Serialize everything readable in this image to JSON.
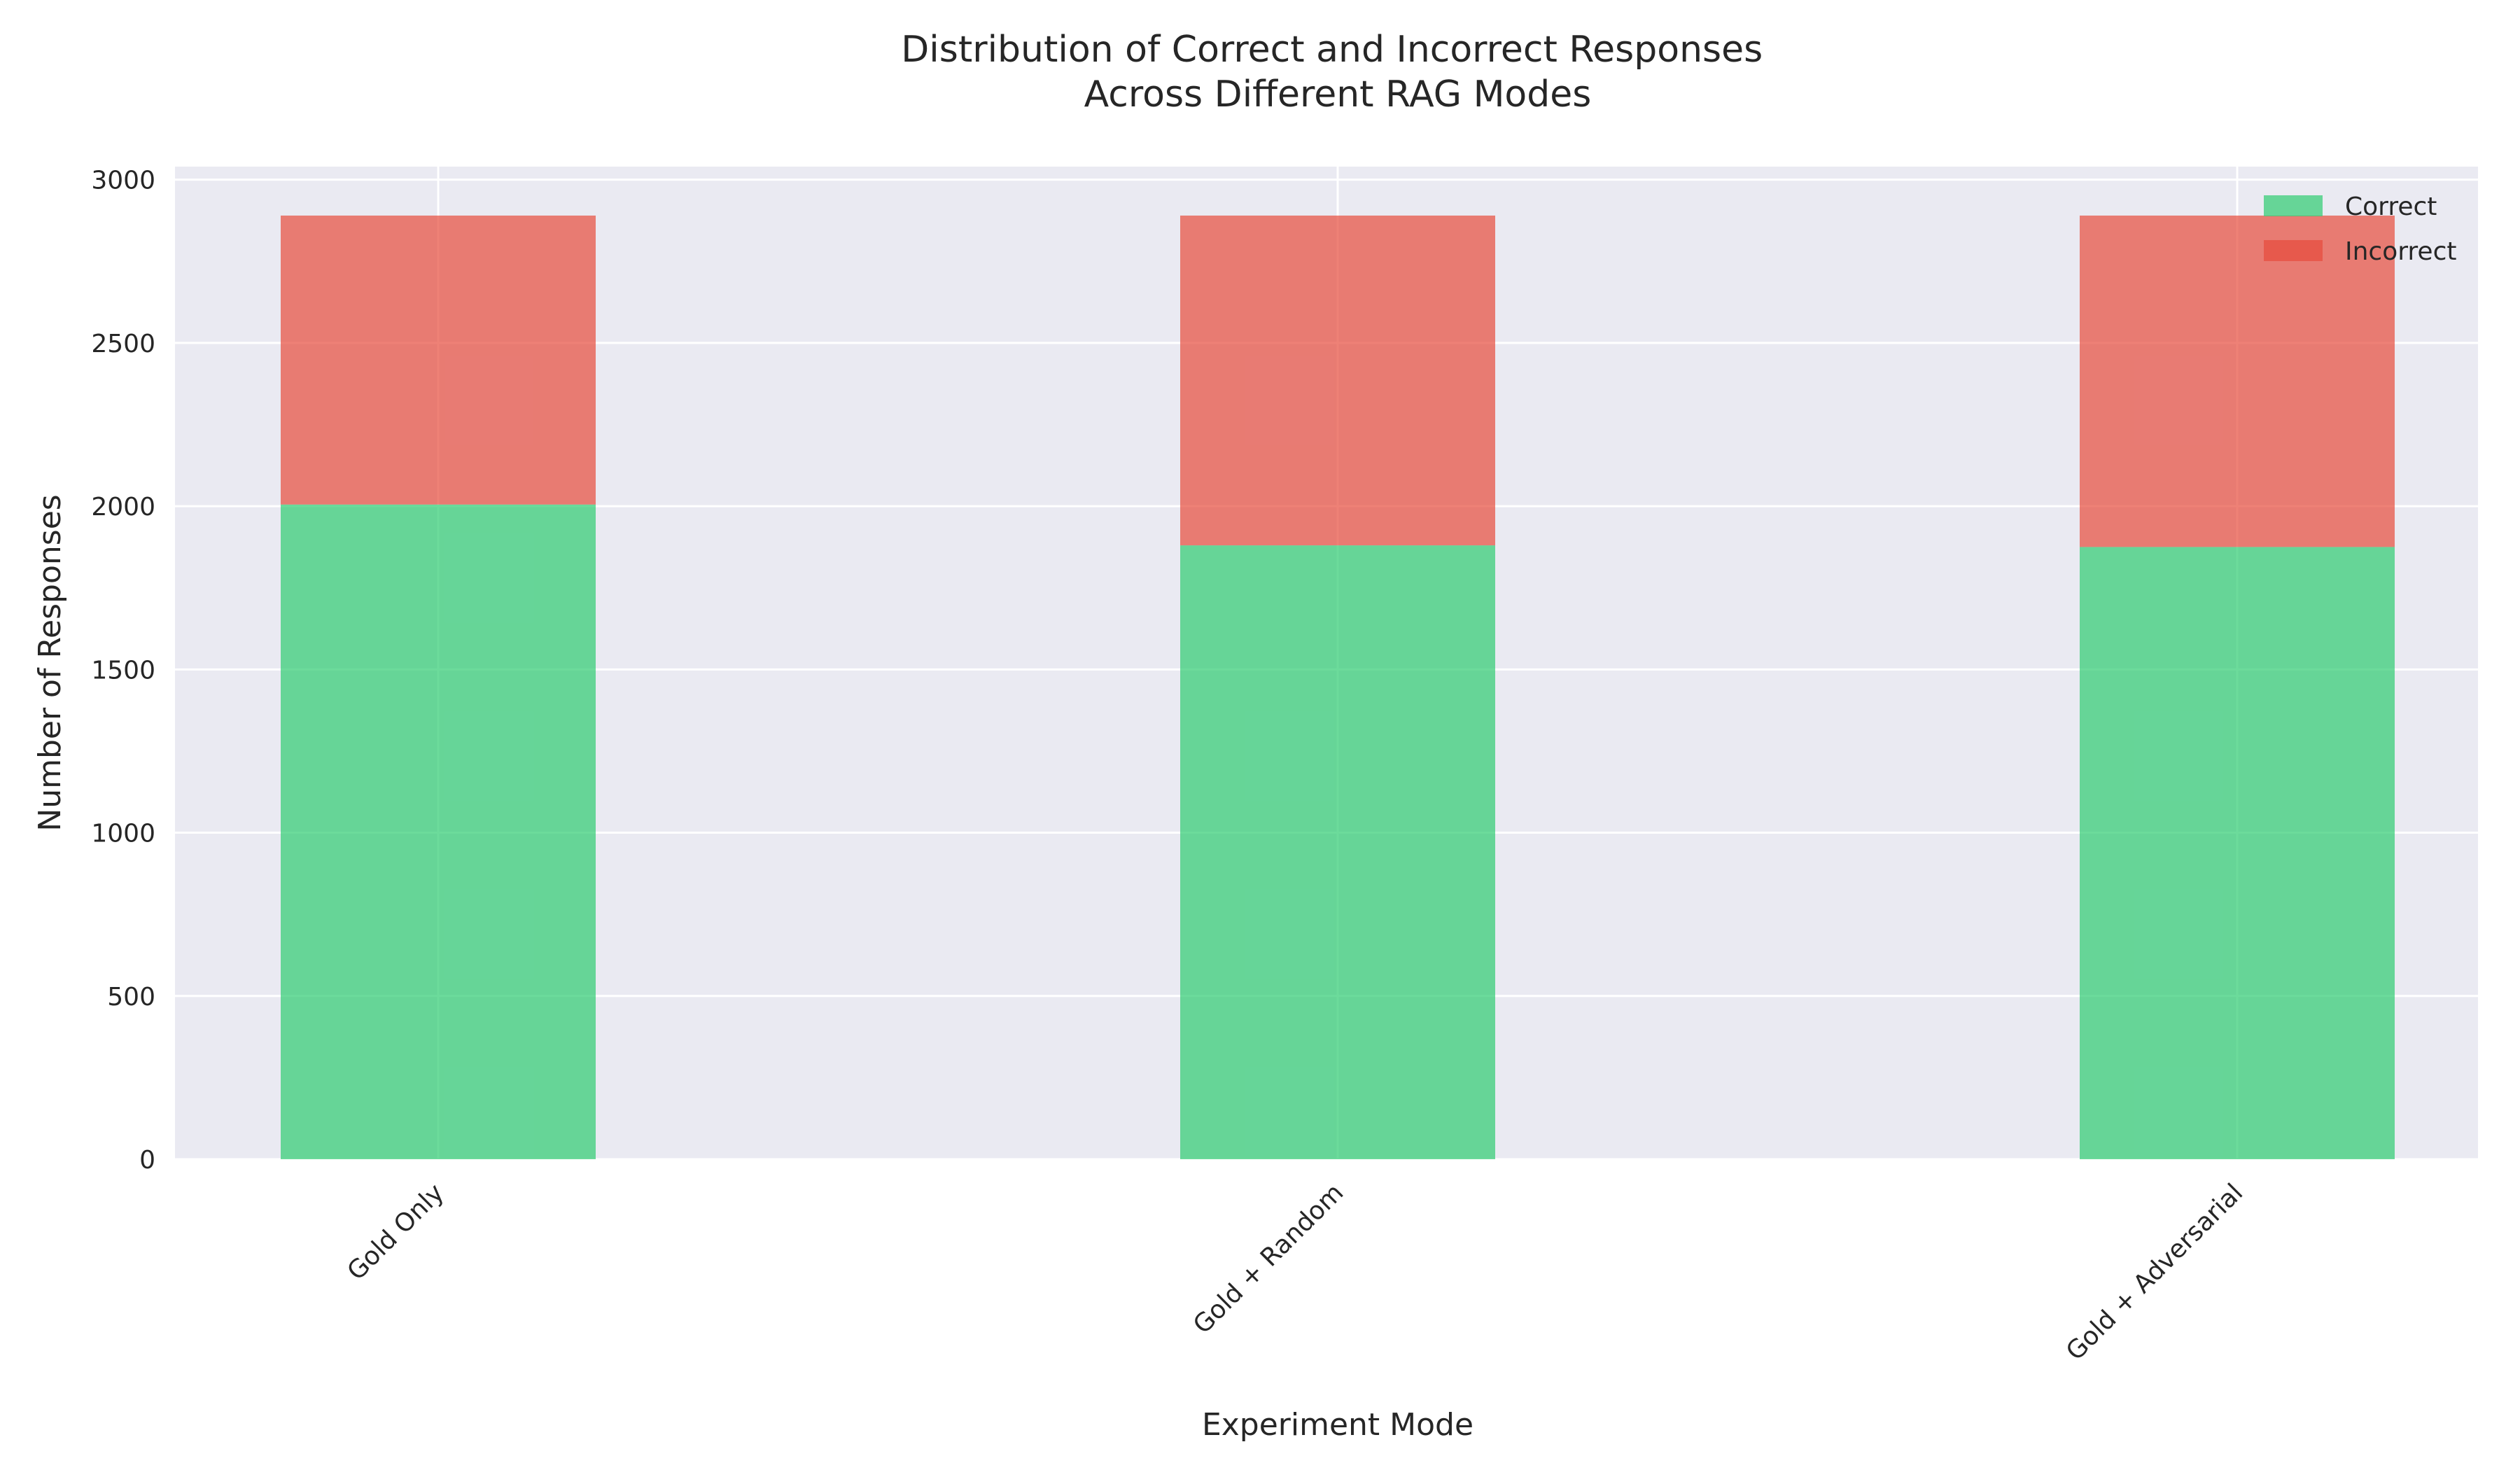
{
  "chart_data": {
    "type": "bar",
    "stacked": true,
    "title_lines": [
      "Distribution of Correct and Incorrect Responses",
      "Across Different RAG Modes"
    ],
    "xlabel": "Experiment Mode",
    "ylabel": "Number of Responses",
    "categories": [
      "Gold Only",
      "Gold + Random",
      "Gold + Adversarial"
    ],
    "series": [
      {
        "name": "Correct",
        "color": "#2ecc71",
        "values": [
          2005,
          1880,
          1875
        ]
      },
      {
        "name": "Incorrect",
        "color": "#e74c3c",
        "values": [
          885,
          1010,
          1015
        ]
      }
    ],
    "ylim": [
      0,
      3040
    ],
    "yticks": [
      0,
      500,
      1000,
      1500,
      2000,
      2500,
      3000
    ],
    "grid": true,
    "legend_position": "top-right",
    "background": "#eaeaf2"
  }
}
